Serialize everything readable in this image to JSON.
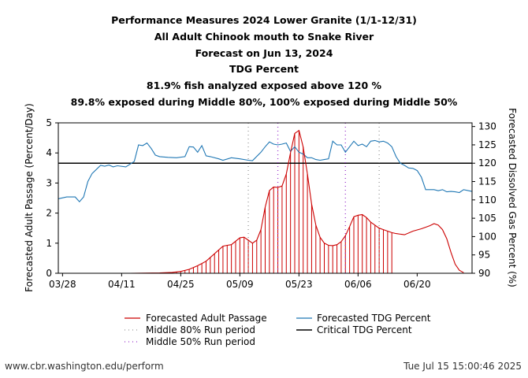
{
  "footer": {
    "url": "www.cbr.washington.edu/perform",
    "timestamp": "Tue Jul 15 15:00:46 2025"
  },
  "chart_data": {
    "type": "line",
    "title_lines": [
      "Performance Measures 2024 Lower Granite (1/1-12/31)",
      "All Adult Chinook mouth to Snake River",
      "Forecast on Jun 13, 2024",
      "TDG Percent",
      "81.9% fish analyzed exposed above 120 %",
      "89.8% exposed during Middle 80%, 100% exposed during Middle 50%"
    ],
    "ylabel_left": "Forecasted Adult Passage (Percent/Day)",
    "ylabel_right": "Forecasted Dissolved Gas Percent (%)",
    "ylim_left": [
      0,
      5
    ],
    "ylim_right": [
      90,
      131
    ],
    "yticks_left": [
      "0",
      "1",
      "2",
      "3",
      "4",
      "5"
    ],
    "yticks_right": [
      "90",
      "95",
      "100",
      "105",
      "110",
      "115",
      "120",
      "125",
      "130"
    ],
    "x_date_range": [
      "2024-03-27",
      "2024-07-03"
    ],
    "x_tick_dates": [
      "2024-03-28",
      "2024-04-11",
      "2024-04-25",
      "2024-05-09",
      "2024-05-23",
      "2024-06-06",
      "2024-06-20"
    ],
    "x_tick_labels": [
      "03/28",
      "04/11",
      "04/25",
      "05/09",
      "05/23",
      "06/06",
      "06/20"
    ],
    "critical_tdg_percent": 120,
    "middle80_dates": [
      "2024-05-11",
      "2024-06-11"
    ],
    "middle50_dates": [
      "2024-05-18",
      "2024-06-03"
    ],
    "observed_bars_end": "2024-06-14",
    "legend": {
      "passage": "Forecasted Adult Passage",
      "tdg": "Forecasted TDG Percent",
      "mid80": "Middle 80% Run period",
      "mid50": "Middle 50% Run period",
      "critical": "Critical TDG Percent"
    },
    "colors": {
      "passage": "#cc0000",
      "tdg": "#1f77b4",
      "mid80": "#999999",
      "mid50": "#9933cc",
      "critical": "#000000"
    },
    "series": [
      {
        "name": "Forecasted Adult Passage",
        "axis": "left",
        "points": [
          [
            "2024-03-27",
            0
          ],
          [
            "2024-04-13",
            0
          ],
          [
            "2024-04-20",
            0.01
          ],
          [
            "2024-04-23",
            0.03
          ],
          [
            "2024-04-25",
            0.06
          ],
          [
            "2024-04-27",
            0.13
          ],
          [
            "2024-04-29",
            0.25
          ],
          [
            "2024-05-01",
            0.4
          ],
          [
            "2024-05-03",
            0.65
          ],
          [
            "2024-05-05",
            0.9
          ],
          [
            "2024-05-06",
            0.93
          ],
          [
            "2024-05-07",
            0.95
          ],
          [
            "2024-05-09",
            1.18
          ],
          [
            "2024-05-10",
            1.2
          ],
          [
            "2024-05-11",
            1.1
          ],
          [
            "2024-05-12",
            1.0
          ],
          [
            "2024-05-13",
            1.1
          ],
          [
            "2024-05-14",
            1.45
          ],
          [
            "2024-05-15",
            2.2
          ],
          [
            "2024-05-16",
            2.75
          ],
          [
            "2024-05-17",
            2.87
          ],
          [
            "2024-05-18",
            2.85
          ],
          [
            "2024-05-19",
            2.9
          ],
          [
            "2024-05-20",
            3.3
          ],
          [
            "2024-05-21",
            4.0
          ],
          [
            "2024-05-22",
            4.65
          ],
          [
            "2024-05-23",
            4.75
          ],
          [
            "2024-05-24",
            4.2
          ],
          [
            "2024-05-25",
            3.3
          ],
          [
            "2024-05-26",
            2.3
          ],
          [
            "2024-05-27",
            1.6
          ],
          [
            "2024-05-28",
            1.2
          ],
          [
            "2024-05-29",
            1.0
          ],
          [
            "2024-05-30",
            0.93
          ],
          [
            "2024-05-31",
            0.92
          ],
          [
            "2024-06-01",
            0.95
          ],
          [
            "2024-06-02",
            1.05
          ],
          [
            "2024-06-03",
            1.25
          ],
          [
            "2024-06-04",
            1.55
          ],
          [
            "2024-06-05",
            1.88
          ],
          [
            "2024-06-06",
            1.93
          ],
          [
            "2024-06-07",
            1.95
          ],
          [
            "2024-06-08",
            1.85
          ],
          [
            "2024-06-09",
            1.7
          ],
          [
            "2024-06-10",
            1.6
          ],
          [
            "2024-06-11",
            1.5
          ],
          [
            "2024-06-12",
            1.45
          ],
          [
            "2024-06-13",
            1.4
          ],
          [
            "2024-06-14",
            1.35
          ],
          [
            "2024-06-15",
            1.32
          ],
          [
            "2024-06-17",
            1.28
          ],
          [
            "2024-06-19",
            1.4
          ],
          [
            "2024-06-21",
            1.48
          ],
          [
            "2024-06-23",
            1.58
          ],
          [
            "2024-06-24",
            1.65
          ],
          [
            "2024-06-25",
            1.6
          ],
          [
            "2024-06-26",
            1.45
          ],
          [
            "2024-06-27",
            1.15
          ],
          [
            "2024-06-28",
            0.7
          ],
          [
            "2024-06-29",
            0.3
          ],
          [
            "2024-06-30",
            0.1
          ],
          [
            "2024-07-01",
            0.02
          ]
        ]
      },
      {
        "name": "Forecasted TDG Percent",
        "axis": "right",
        "points": [
          [
            "2024-03-27",
            110.3
          ],
          [
            "2024-03-29",
            110.8
          ],
          [
            "2024-03-31",
            110.8
          ],
          [
            "2024-04-01",
            109.5
          ],
          [
            "2024-04-02",
            110.8
          ],
          [
            "2024-04-03",
            115.0
          ],
          [
            "2024-04-04",
            117.2
          ],
          [
            "2024-04-06",
            119.4
          ],
          [
            "2024-04-07",
            119.2
          ],
          [
            "2024-04-08",
            119.5
          ],
          [
            "2024-04-09",
            119.0
          ],
          [
            "2024-04-10",
            119.3
          ],
          [
            "2024-04-12",
            119.0
          ],
          [
            "2024-04-14",
            120.5
          ],
          [
            "2024-04-15",
            125.0
          ],
          [
            "2024-04-16",
            124.8
          ],
          [
            "2024-04-17",
            125.5
          ],
          [
            "2024-04-18",
            124.0
          ],
          [
            "2024-04-19",
            122.2
          ],
          [
            "2024-04-20",
            121.8
          ],
          [
            "2024-04-22",
            121.6
          ],
          [
            "2024-04-24",
            121.5
          ],
          [
            "2024-04-26",
            121.8
          ],
          [
            "2024-04-27",
            124.5
          ],
          [
            "2024-04-28",
            124.4
          ],
          [
            "2024-04-29",
            123.0
          ],
          [
            "2024-04-30",
            124.8
          ],
          [
            "2024-05-01",
            122.0
          ],
          [
            "2024-05-02",
            121.8
          ],
          [
            "2024-05-04",
            121.2
          ],
          [
            "2024-05-05",
            120.8
          ],
          [
            "2024-05-07",
            121.5
          ],
          [
            "2024-05-09",
            121.2
          ],
          [
            "2024-05-11",
            120.8
          ],
          [
            "2024-05-12",
            120.7
          ],
          [
            "2024-05-14",
            123.0
          ],
          [
            "2024-05-15",
            124.5
          ],
          [
            "2024-05-16",
            125.8
          ],
          [
            "2024-05-17",
            125.2
          ],
          [
            "2024-05-18",
            125.0
          ],
          [
            "2024-05-19",
            125.2
          ],
          [
            "2024-05-20",
            125.5
          ],
          [
            "2024-05-21",
            123.2
          ],
          [
            "2024-05-22",
            124.5
          ],
          [
            "2024-05-23",
            123.0
          ],
          [
            "2024-05-24",
            122.5
          ],
          [
            "2024-05-25",
            121.5
          ],
          [
            "2024-05-26",
            121.5
          ],
          [
            "2024-05-27",
            121.0
          ],
          [
            "2024-05-28",
            120.8
          ],
          [
            "2024-05-29",
            121.0
          ],
          [
            "2024-05-30",
            121.2
          ],
          [
            "2024-05-31",
            126.0
          ],
          [
            "2024-06-01",
            125.0
          ],
          [
            "2024-06-02",
            125.0
          ],
          [
            "2024-06-03",
            123.0
          ],
          [
            "2024-06-05",
            126.0
          ],
          [
            "2024-06-06",
            124.8
          ],
          [
            "2024-06-07",
            125.2
          ],
          [
            "2024-06-08",
            124.5
          ],
          [
            "2024-06-09",
            126.0
          ],
          [
            "2024-06-10",
            126.2
          ],
          [
            "2024-06-11",
            125.8
          ],
          [
            "2024-06-12",
            126.0
          ],
          [
            "2024-06-13",
            125.5
          ],
          [
            "2024-06-14",
            124.5
          ],
          [
            "2024-06-15",
            121.8
          ],
          [
            "2024-06-16",
            120.0
          ],
          [
            "2024-06-17",
            119.4
          ],
          [
            "2024-06-18",
            118.7
          ],
          [
            "2024-06-19",
            118.6
          ],
          [
            "2024-06-20",
            118.0
          ],
          [
            "2024-06-21",
            116.2
          ],
          [
            "2024-06-22",
            112.8
          ],
          [
            "2024-06-24",
            112.8
          ],
          [
            "2024-06-25",
            112.5
          ],
          [
            "2024-06-26",
            112.8
          ],
          [
            "2024-06-27",
            112.2
          ],
          [
            "2024-06-28",
            112.3
          ],
          [
            "2024-06-29",
            112.2
          ],
          [
            "2024-06-30",
            112.0
          ],
          [
            "2024-07-01",
            112.8
          ],
          [
            "2024-07-03",
            112.3
          ]
        ]
      }
    ]
  }
}
